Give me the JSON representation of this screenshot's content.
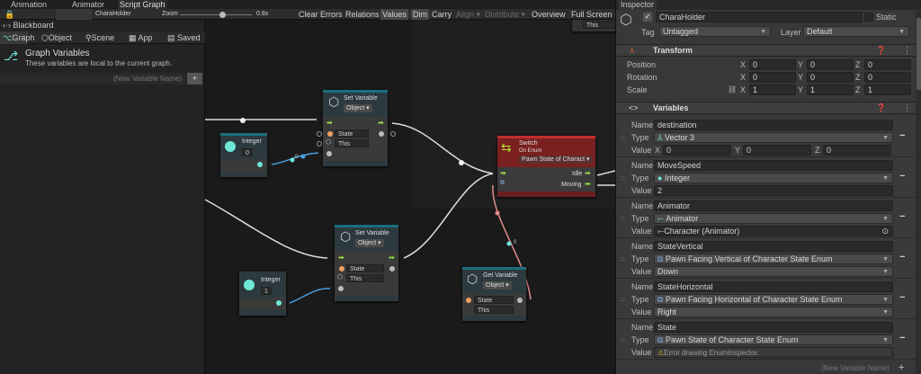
{
  "tabs": [
    "Animation",
    "Animator",
    "Script Graph"
  ],
  "toolbar": {
    "object": "CharaHolder",
    "zoom_label": "Zoom",
    "zoom_value": "0.8x",
    "zoom_fraction": 0.6,
    "buttons": [
      "Clear Errors",
      "Relations",
      "Values",
      "Dim",
      "Carry",
      "Align ▾",
      "Distribute ▾",
      "Overview",
      "Full Screen"
    ]
  },
  "blackboard": {
    "title": "Blackboard",
    "tabs": [
      "Graph",
      "Object",
      "Scene",
      "App",
      "Saved"
    ],
    "section_title": "Graph Variables",
    "section_desc": "These variables are local to the current graph.",
    "new_var_placeholder": "(New Variable Name)",
    "add": "+"
  },
  "graph": {
    "set1": {
      "title": "Set Variable",
      "kind": "Object ▾",
      "var": "State",
      "target": "This"
    },
    "int0": {
      "title": "Integer",
      "value": "0"
    },
    "switch": {
      "title": "Switch",
      "subtitle": "On Enum",
      "enum": "Pawn State of Charact ▾",
      "out1": "Idle",
      "out2": "Moving"
    },
    "set2": {
      "title": "Set Variable",
      "kind": "Object ▾",
      "var": "State",
      "target": "This"
    },
    "int1": {
      "title": "Integer",
      "value": "1"
    },
    "get": {
      "title": "Get Variable",
      "kind": "Object ▾",
      "var": "State",
      "target": "This"
    },
    "partial": "This",
    "wire_label1": "0",
    "wire_label2": "0"
  },
  "inspector": {
    "tab": "Inspector",
    "object_name": "CharaHolder",
    "enabled": true,
    "static_label": "Static",
    "tag_label": "Tag",
    "tag": "Untagged",
    "layer_label": "Layer",
    "layer": "Default",
    "transform": {
      "title": "Transform",
      "rows": [
        {
          "label": "Position",
          "x": "0",
          "y": "0",
          "z": "0"
        },
        {
          "label": "Rotation",
          "x": "0",
          "y": "0",
          "z": "0"
        },
        {
          "label": "Scale",
          "x": "1",
          "y": "1",
          "z": "1"
        }
      ]
    },
    "variables": {
      "title": "Variables",
      "items": [
        {
          "name": "destination",
          "type": "Vector 3",
          "value_x": "0",
          "value_y": "0",
          "value_z": "0"
        },
        {
          "name": "MoveSpeed",
          "type": "Integer",
          "value": "2"
        },
        {
          "name": "Animator",
          "type": "Animator",
          "value": "Character (Animator)"
        },
        {
          "name": "StateVertical",
          "type": "Pawn Facing Vertical of Character State Enum",
          "value": "Down"
        },
        {
          "name": "StateHorizontal",
          "type": "Pawn Facing Horizontal of Character State Enum",
          "value": "Right"
        },
        {
          "name": "State",
          "type": "Pawn State of Character State Enum",
          "value": "Error drawing EnumInspector."
        }
      ],
      "labels": {
        "name": "Name",
        "type": "Type",
        "value": "Value",
        "x": "X",
        "y": "Y",
        "z": "Z"
      },
      "new_var_placeholder": "(New Variable Name)"
    }
  },
  "colors": {
    "accent_teal": "#1a6f80",
    "switch_red": "#8a2222",
    "flow_green": "#9fe04a",
    "int_port": "#6ee8d6",
    "enum_port": "#f08a8a",
    "object_port": "#f0a060"
  }
}
